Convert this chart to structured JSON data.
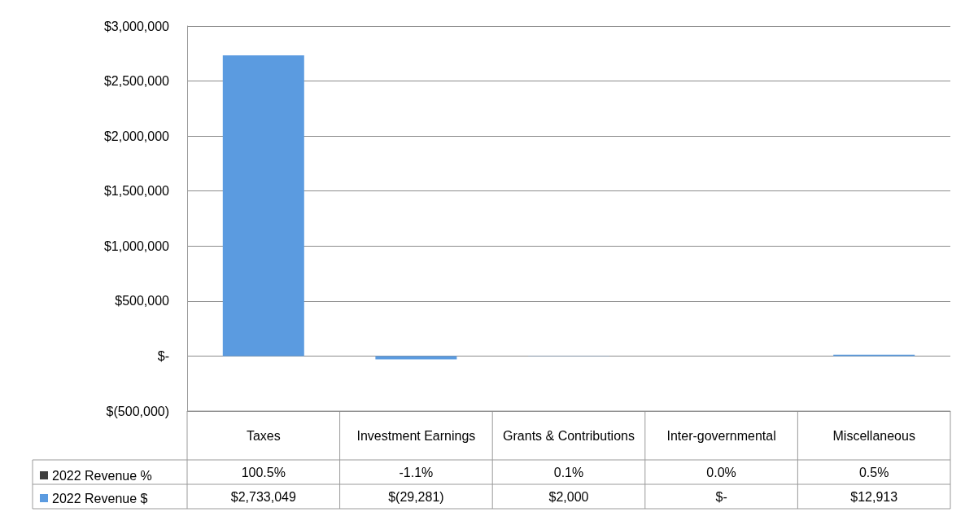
{
  "chart_data": {
    "type": "bar",
    "categories": [
      "Taxes",
      "Investment Earnings",
      "Grants & Contributions",
      "Inter-governmental",
      "Miscellaneous"
    ],
    "series": [
      {
        "name": "2022 Revenue %",
        "color": "#404040",
        "values": [
          100.5,
          -1.1,
          0.1,
          0.0,
          0.5
        ],
        "value_labels": [
          "100.5%",
          "-1.1%",
          "0.1%",
          "0.0%",
          "0.5%"
        ]
      },
      {
        "name": "2022 Revenue $",
        "color": "#5b9be0",
        "values": [
          2733049,
          -29281,
          2000,
          0,
          12913
        ],
        "value_labels": [
          "$2,733,049",
          "$(29,281)",
          "$2,000",
          "$-",
          "$12,913"
        ]
      }
    ],
    "ylim": [
      -500000,
      3000000
    ],
    "yticks": [
      {
        "value": -500000,
        "label": "$(500,000)"
      },
      {
        "value": 0,
        "label": "$-"
      },
      {
        "value": 500000,
        "label": "$500,000"
      },
      {
        "value": 1000000,
        "label": "$1,000,000"
      },
      {
        "value": 1500000,
        "label": "$1,500,000"
      },
      {
        "value": 2000000,
        "label": "$2,000,000"
      },
      {
        "value": 2500000,
        "label": "$2,500,000"
      },
      {
        "value": 3000000,
        "label": "$3,000,000"
      }
    ],
    "grid": "y",
    "legend": "bottom left"
  }
}
